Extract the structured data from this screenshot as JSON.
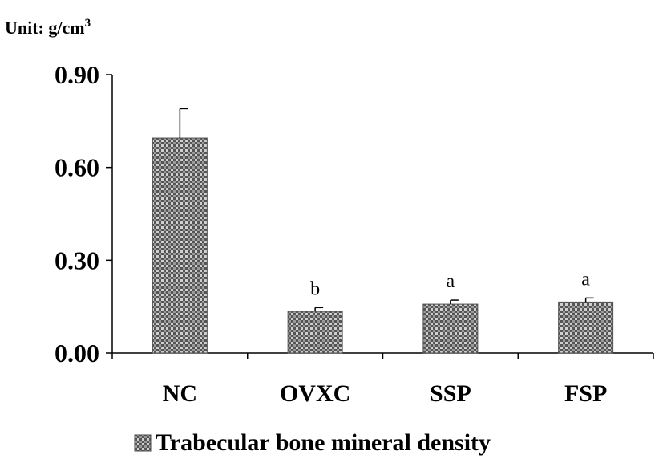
{
  "chart_data": {
    "type": "bar",
    "unit_label": "Unit: g/cm",
    "unit_superscript": "3",
    "categories": [
      "NC",
      "OVXC",
      "SSP",
      "FSP"
    ],
    "series": [
      {
        "name": "Trabecular bone mineral density",
        "values": [
          0.695,
          0.135,
          0.158,
          0.165
        ],
        "errors": [
          0.095,
          0.012,
          0.013,
          0.013
        ],
        "annotations": [
          "",
          "b",
          "a",
          "a"
        ]
      }
    ],
    "yticks": [
      "0.00",
      "0.30",
      "0.60",
      "0.90"
    ],
    "ytick_values": [
      0,
      0.3,
      0.6,
      0.9
    ],
    "ylim": [
      0,
      0.9
    ],
    "grid": false,
    "legend_position": "bottom",
    "bar_color": "#8a8a8a"
  }
}
